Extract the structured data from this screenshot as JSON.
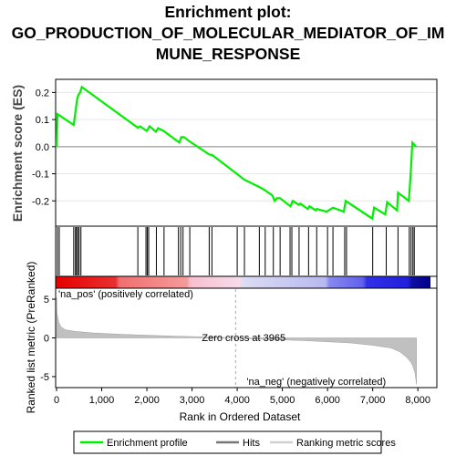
{
  "title": [
    "Enrichment plot:",
    "GO_PRODUCTION_OF_MOLECULAR_MEDIATOR_OF_IM",
    "MUNE_RESPONSE"
  ],
  "colors": {
    "profile": "#00ee00",
    "hits": "#000000",
    "ranked": "#c0c0c0",
    "pos_label": "#ff0000",
    "neg_label": "#0000ff"
  },
  "chart_data": [
    {
      "type": "line",
      "name": "enrichment-profile",
      "ylabel": "Enrichment score (ES)",
      "xlim": [
        0,
        8400
      ],
      "ylim": [
        -0.29,
        0.245
      ],
      "yticks": [
        0.2,
        0.1,
        0.0,
        -0.1,
        -0.2
      ],
      "yticklabels": [
        "0.2",
        "0.1",
        "0.0",
        "-0.1",
        "-0.2"
      ],
      "x": [
        0,
        20,
        380,
        420,
        450,
        480,
        520,
        560,
        1800,
        1850,
        2000,
        2060,
        2200,
        2250,
        2370,
        2720,
        2760,
        2820,
        2940,
        3390,
        3440,
        3990,
        4140,
        4500,
        4610,
        4780,
        4830,
        4880,
        4950,
        5180,
        5230,
        5370,
        5400,
        5560,
        5600,
        5740,
        5760,
        5980,
        6120,
        6360,
        6400,
        6990,
        7030,
        7280,
        7320,
        7540,
        7560,
        7800,
        7840,
        7880,
        7960
      ],
      "y": [
        0.0,
        0.12,
        0.08,
        0.13,
        0.17,
        0.19,
        0.2,
        0.22,
        0.07,
        0.075,
        0.058,
        0.075,
        0.055,
        0.068,
        0.058,
        0.015,
        0.035,
        0.035,
        0.02,
        -0.03,
        -0.03,
        -0.1,
        -0.12,
        -0.15,
        -0.16,
        -0.18,
        -0.2,
        -0.19,
        -0.19,
        -0.22,
        -0.2,
        -0.215,
        -0.21,
        -0.23,
        -0.22,
        -0.235,
        -0.23,
        -0.24,
        -0.225,
        -0.24,
        -0.2,
        -0.265,
        -0.225,
        -0.25,
        -0.205,
        -0.235,
        -0.17,
        -0.2,
        -0.1,
        0.015,
        0.0
      ]
    },
    {
      "type": "scatter",
      "name": "hits",
      "x": [
        20,
        60,
        380,
        420,
        440,
        470,
        500,
        540,
        1800,
        1980,
        2010,
        2040,
        2210,
        2380,
        2700,
        2750,
        2800,
        2950,
        3380,
        3440,
        4000,
        4160,
        4490,
        4620,
        4800,
        4950,
        5170,
        5210,
        5370,
        5580,
        5760,
        6000,
        6120,
        6380,
        6420,
        7000,
        7300,
        7560,
        7810,
        7850,
        7890,
        7920
      ]
    },
    {
      "type": "area",
      "name": "ranked-list-metric",
      "ylabel": "Ranked list metric (PreRanked)",
      "xlabel": "Rank in Ordered Dataset",
      "xlim": [
        0,
        8400
      ],
      "ylim": [
        -6.3,
        6.3
      ],
      "yticks": [
        5,
        0,
        -5
      ],
      "yticklabels": [
        "5",
        "0",
        "-5"
      ],
      "xticks": [
        0,
        1000,
        2000,
        3000,
        4000,
        5000,
        6000,
        7000,
        8000
      ],
      "xticklabels": [
        "0",
        "1,000",
        "2,000",
        "3,000",
        "4,000",
        "5,000",
        "6,000",
        "7,000",
        "8,000"
      ],
      "x": [
        0,
        10,
        50,
        100,
        200,
        400,
        800,
        1500,
        2500,
        3500,
        3965,
        4500,
        5500,
        6500,
        7000,
        7400,
        7600,
        7750,
        7850,
        7900,
        7940,
        7970
      ],
      "y": [
        5.2,
        3.2,
        2.0,
        1.4,
        1.05,
        0.85,
        0.65,
        0.45,
        0.25,
        0.1,
        0.0,
        -0.15,
        -0.35,
        -0.65,
        -0.95,
        -1.3,
        -1.8,
        -2.5,
        -3.2,
        -3.8,
        -4.6,
        -6.0
      ],
      "zero_cross": 3965,
      "annotations": [
        "Zero cross at 3965",
        "'na_pos' (positively correlated)",
        "'na_neg' (negatively correlated)"
      ]
    }
  ],
  "legend": {
    "items": [
      "Enrichment profile",
      "Hits",
      "Ranking metric scores"
    ]
  }
}
